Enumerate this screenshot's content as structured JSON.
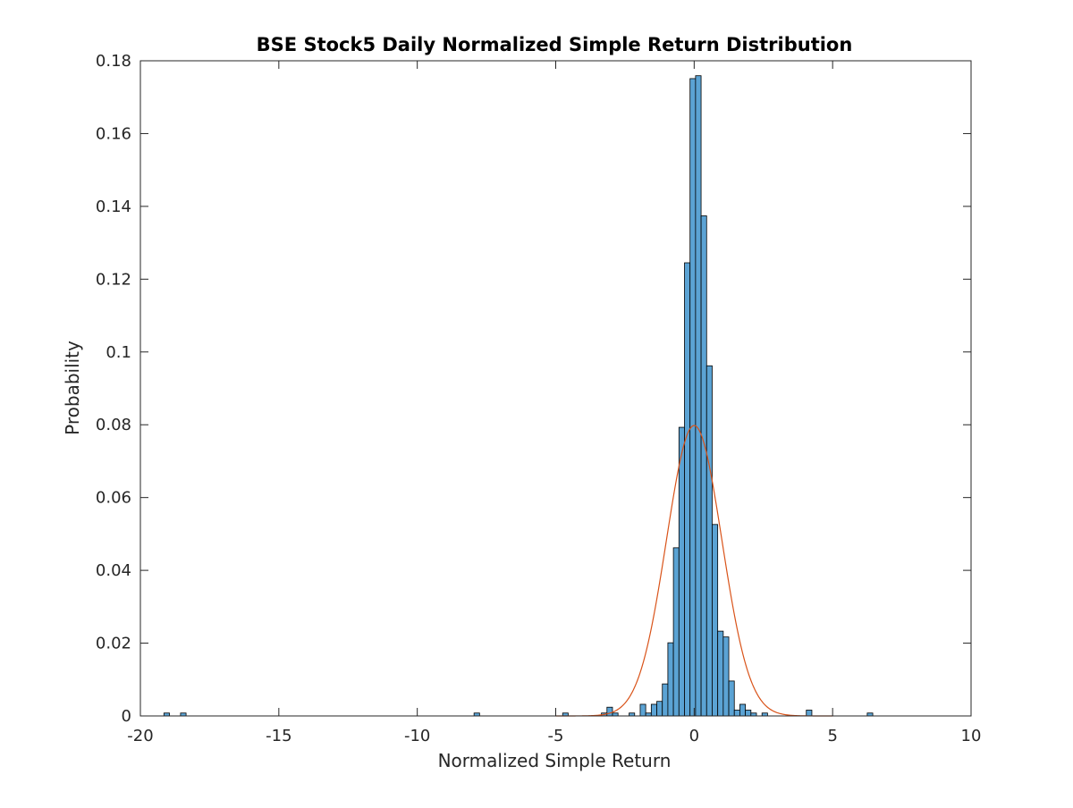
{
  "chart_data": {
    "type": "bar",
    "title": "BSE Stock5 Daily Normalized Simple Return Distribution",
    "xlabel": "Normalized Simple Return",
    "ylabel": "Probability",
    "xlim": [
      -20,
      10
    ],
    "ylim": [
      0,
      0.18
    ],
    "xticks": [
      -20,
      -15,
      -10,
      -5,
      0,
      5,
      10
    ],
    "xtick_labels": [
      "-20",
      "-15",
      "-10",
      "-5",
      "0",
      "5",
      "10"
    ],
    "yticks": [
      0,
      0.02,
      0.04,
      0.06,
      0.08,
      0.1,
      0.12,
      0.14,
      0.16,
      0.18
    ],
    "ytick_labels": [
      "0",
      "0.02",
      "0.04",
      "0.06",
      "0.08",
      "0.1",
      "0.12",
      "0.14",
      "0.16",
      "0.18"
    ],
    "grid": false,
    "bin_width": 0.2,
    "bar_color": "#5ba3d4",
    "bar_edge_color": "#000000",
    "series": [
      {
        "type": "histogram",
        "bins": [
          {
            "x0": -19.15,
            "value": 0.0008
          },
          {
            "x0": -18.55,
            "value": 0.0008
          },
          {
            "x0": -7.95,
            "value": 0.0008
          },
          {
            "x0": -4.75,
            "value": 0.0008
          },
          {
            "x0": -3.35,
            "value": 0.0008
          },
          {
            "x0": -3.15,
            "value": 0.0024
          },
          {
            "x0": -2.95,
            "value": 0.0008
          },
          {
            "x0": -2.35,
            "value": 0.0008
          },
          {
            "x0": -1.95,
            "value": 0.0032
          },
          {
            "x0": -1.75,
            "value": 0.0008
          },
          {
            "x0": -1.55,
            "value": 0.0032
          },
          {
            "x0": -1.35,
            "value": 0.004
          },
          {
            "x0": -1.15,
            "value": 0.0088
          },
          {
            "x0": -0.95,
            "value": 0.0201
          },
          {
            "x0": -0.75,
            "value": 0.0462
          },
          {
            "x0": -0.55,
            "value": 0.0793
          },
          {
            "x0": -0.35,
            "value": 0.1245
          },
          {
            "x0": -0.15,
            "value": 0.1751
          },
          {
            "x0": 0.05,
            "value": 0.1759
          },
          {
            "x0": 0.25,
            "value": 0.1374
          },
          {
            "x0": 0.45,
            "value": 0.0962
          },
          {
            "x0": 0.65,
            "value": 0.0526
          },
          {
            "x0": 0.85,
            "value": 0.0233
          },
          {
            "x0": 1.05,
            "value": 0.0217
          },
          {
            "x0": 1.25,
            "value": 0.0096
          },
          {
            "x0": 1.45,
            "value": 0.0016
          },
          {
            "x0": 1.65,
            "value": 0.0032
          },
          {
            "x0": 1.85,
            "value": 0.0016
          },
          {
            "x0": 2.05,
            "value": 0.0008
          },
          {
            "x0": 2.45,
            "value": 0.0008
          },
          {
            "x0": 4.05,
            "value": 0.0016
          },
          {
            "x0": 6.25,
            "value": 0.0008
          }
        ]
      },
      {
        "type": "line",
        "color": "#d95319",
        "description_of_curve": "normal density fit",
        "x_range": [
          -5,
          5
        ],
        "mu": 0,
        "sigma": 1,
        "scale": 0.2
      }
    ]
  }
}
